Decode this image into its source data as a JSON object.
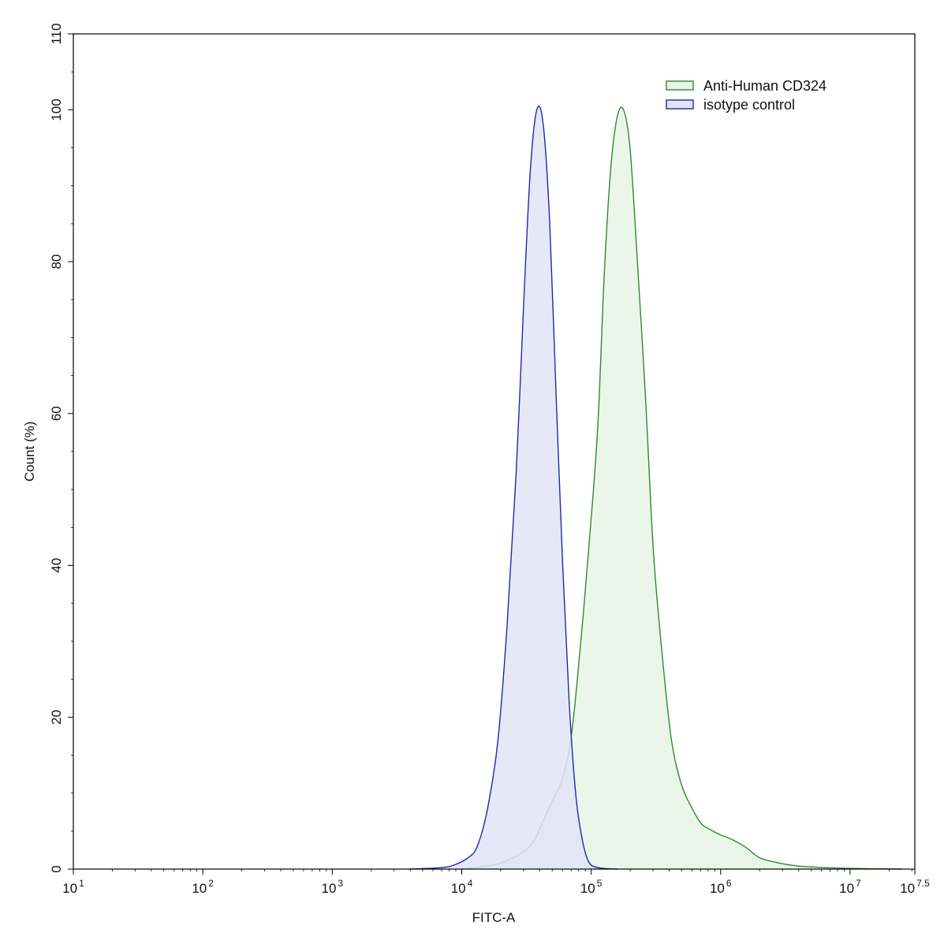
{
  "chart_data": {
    "type": "area",
    "xlabel": "FITC-A",
    "ylabel": "Count  (%)",
    "xscale": "log10",
    "xlim_log10": [
      1,
      7.5
    ],
    "ylim": [
      0,
      110
    ],
    "x_ticks": [
      {
        "base": "10",
        "exp": "1",
        "value_log10": 1
      },
      {
        "base": "10",
        "exp": "2",
        "value_log10": 2
      },
      {
        "base": "10",
        "exp": "3",
        "value_log10": 3
      },
      {
        "base": "10",
        "exp": "4",
        "value_log10": 4
      },
      {
        "base": "10",
        "exp": "5",
        "value_log10": 5
      },
      {
        "base": "10",
        "exp": "6",
        "value_log10": 6
      },
      {
        "base": "10",
        "exp": "7",
        "value_log10": 7
      },
      {
        "base": "10",
        "exp": "7.5",
        "value_log10": 7.5
      }
    ],
    "y_ticks": [
      "0",
      "20",
      "40",
      "60",
      "80",
      "100",
      "110"
    ],
    "y_tick_values": [
      0,
      20,
      40,
      60,
      80,
      100,
      110
    ],
    "grid": false,
    "legend_position": "top-right",
    "series": [
      {
        "name": "Anti-Human CD324",
        "line_color": "#2e8b2e",
        "fill_color": "#e6f4e6",
        "points_log10x": [
          [
            4.0,
            0
          ],
          [
            4.15,
            0.3
          ],
          [
            4.3,
            0.8
          ],
          [
            4.45,
            2.0
          ],
          [
            4.55,
            3.5
          ],
          [
            4.62,
            6
          ],
          [
            4.7,
            9
          ],
          [
            4.78,
            12
          ],
          [
            4.85,
            18
          ],
          [
            4.92,
            30
          ],
          [
            4.98,
            42
          ],
          [
            5.05,
            58
          ],
          [
            5.1,
            78
          ],
          [
            5.15,
            92
          ],
          [
            5.2,
            99
          ],
          [
            5.25,
            100
          ],
          [
            5.3,
            95
          ],
          [
            5.35,
            82
          ],
          [
            5.42,
            62
          ],
          [
            5.48,
            42
          ],
          [
            5.55,
            28
          ],
          [
            5.62,
            17
          ],
          [
            5.7,
            11
          ],
          [
            5.78,
            8
          ],
          [
            5.85,
            6
          ],
          [
            5.92,
            5.2
          ],
          [
            6.0,
            4.5
          ],
          [
            6.1,
            3.8
          ],
          [
            6.2,
            2.8
          ],
          [
            6.3,
            1.5
          ],
          [
            6.45,
            0.8
          ],
          [
            6.6,
            0.4
          ],
          [
            6.8,
            0.2
          ],
          [
            7.0,
            0.1
          ],
          [
            7.4,
            0
          ]
        ]
      },
      {
        "name": "isotype control",
        "line_color": "#1f2aa8",
        "fill_color": "#e2e4f7",
        "points_log10x": [
          [
            3.6,
            0
          ],
          [
            3.85,
            0.2
          ],
          [
            3.95,
            0.6
          ],
          [
            4.05,
            1.5
          ],
          [
            4.12,
            3
          ],
          [
            4.2,
            8
          ],
          [
            4.28,
            17
          ],
          [
            4.35,
            32
          ],
          [
            4.42,
            52
          ],
          [
            4.48,
            75
          ],
          [
            4.53,
            92
          ],
          [
            4.58,
            100
          ],
          [
            4.63,
            98
          ],
          [
            4.68,
            85
          ],
          [
            4.73,
            62
          ],
          [
            4.78,
            40
          ],
          [
            4.83,
            22
          ],
          [
            4.88,
            10
          ],
          [
            4.93,
            4
          ],
          [
            4.98,
            1
          ],
          [
            5.05,
            0.2
          ],
          [
            5.2,
            0
          ]
        ]
      }
    ]
  }
}
